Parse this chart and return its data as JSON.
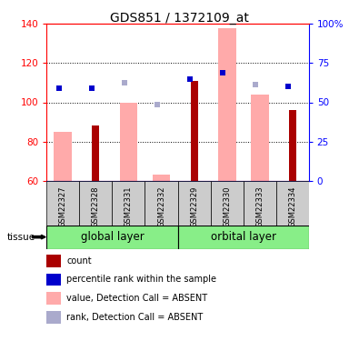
{
  "title": "GDS851 / 1372109_at",
  "samples": [
    "GSM22327",
    "GSM22328",
    "GSM22331",
    "GSM22332",
    "GSM22329",
    "GSM22330",
    "GSM22333",
    "GSM22334"
  ],
  "groups": [
    "global layer",
    "orbital layer"
  ],
  "ylim_left": [
    60,
    140
  ],
  "ylim_right": [
    0,
    100
  ],
  "yticks_left": [
    60,
    80,
    100,
    120,
    140
  ],
  "yticks_right": [
    0,
    25,
    50,
    75,
    100
  ],
  "count_values": [
    null,
    88,
    null,
    null,
    111,
    null,
    null,
    96
  ],
  "rank_values": [
    107,
    107,
    null,
    null,
    112,
    115,
    null,
    108
  ],
  "value_absent": [
    85,
    null,
    100,
    63,
    null,
    138,
    104,
    null
  ],
  "rank_absent": [
    107,
    null,
    110,
    99,
    null,
    115,
    109,
    null
  ],
  "count_color": "#aa0000",
  "rank_color": "#0000cc",
  "value_absent_color": "#ffaaaa",
  "rank_absent_color": "#aaaacc",
  "group_color": "#88ee88",
  "sample_bg_color": "#cccccc",
  "legend_items": [
    {
      "color": "#aa0000",
      "label": "count"
    },
    {
      "color": "#0000cc",
      "label": "percentile rank within the sample"
    },
    {
      "color": "#ffaaaa",
      "label": "value, Detection Call = ABSENT"
    },
    {
      "color": "#aaaacc",
      "label": "rank, Detection Call = ABSENT"
    }
  ]
}
